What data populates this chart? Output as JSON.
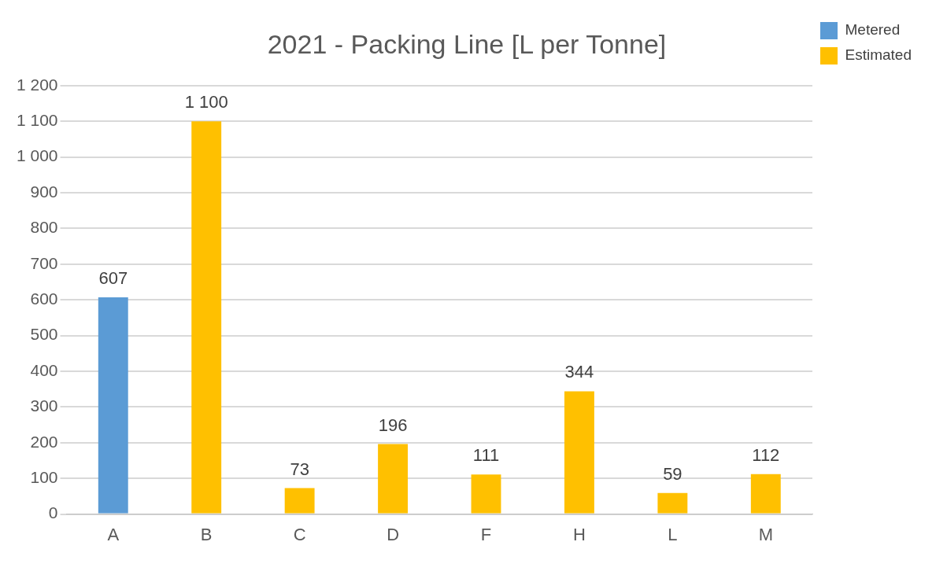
{
  "chart_data": {
    "type": "bar",
    "title": "2021 - Packing Line [L per Tonne]",
    "categories": [
      "A",
      "B",
      "C",
      "D",
      "F",
      "H",
      "L",
      "M"
    ],
    "series": [
      {
        "name": "Metered",
        "color": "#5b9bd5",
        "values": [
          607,
          null,
          null,
          null,
          null,
          null,
          null,
          null
        ],
        "value_labels": [
          "607",
          null,
          null,
          null,
          null,
          null,
          null,
          null
        ]
      },
      {
        "name": "Estimated",
        "color": "#ffc000",
        "values": [
          null,
          1100,
          73,
          196,
          111,
          344,
          59,
          112
        ],
        "value_labels": [
          null,
          "1 100",
          "73",
          "196",
          "111",
          "344",
          "59",
          "112"
        ]
      }
    ],
    "ylim": [
      0,
      1200
    ],
    "yticks": [
      0,
      100,
      200,
      300,
      400,
      500,
      600,
      700,
      800,
      900,
      {
        "value": 1000,
        "label": "1 000"
      },
      {
        "value": 1100,
        "label": "1 100"
      },
      {
        "value": 1200,
        "label": "1 200"
      }
    ],
    "grid": "y",
    "legend": "top right"
  }
}
